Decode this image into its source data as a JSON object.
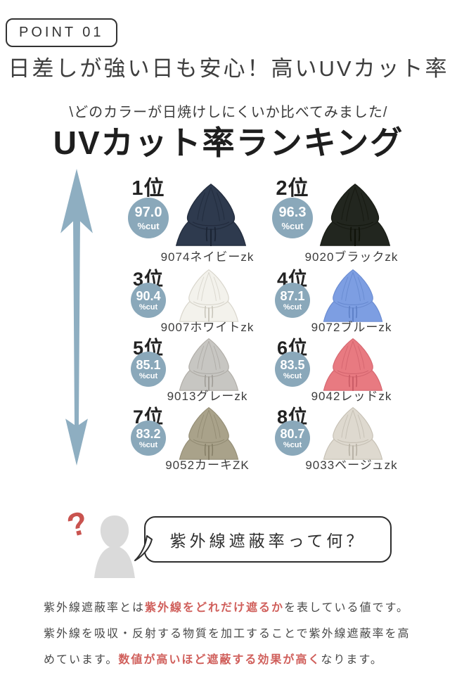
{
  "header": {
    "point_label": "POINT 01",
    "title": "日差しが強い日も安心！高いUVカット率",
    "callout": "\\どのカラーが日焼けしにくいか比べてみました/",
    "ranking_title": "UVカット率ランキング"
  },
  "ranking": {
    "badge_color": "#8aa8ba",
    "arrow_color": "#8eaec1",
    "items": [
      {
        "rank": "1位",
        "pct": "97.0",
        "cut_label": "%cut",
        "caption": "9074ネイビーzk",
        "color_name": "navy",
        "fill": "#2e3a4e",
        "detail": "#1b2434",
        "outline": "#232d3e",
        "large": true
      },
      {
        "rank": "2位",
        "pct": "96.3",
        "cut_label": "%cut",
        "caption": "9020ブラックzk",
        "color_name": "black",
        "fill": "#22261f",
        "detail": "#101309",
        "outline": "#1a1d16",
        "large": true
      },
      {
        "rank": "3位",
        "pct": "90.4",
        "cut_label": "%cut",
        "caption": "9007ホワイトzk",
        "color_name": "white",
        "fill": "#f3f2ec",
        "detail": "#c6c3b8",
        "outline": "#d8d5cb",
        "large": false
      },
      {
        "rank": "4位",
        "pct": "87.1",
        "cut_label": "%cut",
        "caption": "9072ブルーzk",
        "color_name": "blue",
        "fill": "#7d9ee2",
        "detail": "#5a7dc4",
        "outline": "#6b8cd1",
        "large": false
      },
      {
        "rank": "5位",
        "pct": "85.1",
        "cut_label": "%cut",
        "caption": "9013グレーzk",
        "color_name": "gray",
        "fill": "#c7c6c2",
        "detail": "#9c9993",
        "outline": "#b0ada7",
        "large": false
      },
      {
        "rank": "6位",
        "pct": "83.5",
        "cut_label": "%cut",
        "caption": "9042レッドzk",
        "color_name": "red",
        "fill": "#e87a81",
        "detail": "#c65862",
        "outline": "#d56770",
        "large": false
      },
      {
        "rank": "7位",
        "pct": "83.2",
        "cut_label": "%cut",
        "caption": "9052カーキZK",
        "color_name": "khaki",
        "fill": "#a9a28a",
        "detail": "#837c64",
        "outline": "#948d75",
        "large": false
      },
      {
        "rank": "8位",
        "pct": "80.7",
        "cut_label": "%cut",
        "caption": "9033ベージュzk",
        "color_name": "beige",
        "fill": "#ded9cf",
        "detail": "#b3ada0",
        "outline": "#c6c0b4",
        "large": false
      }
    ]
  },
  "question": {
    "mark": "?",
    "mark_color": "#c9534f",
    "silhouette_color": "#dadada",
    "bubble_text": "紫外線遮蔽率って何？"
  },
  "explanation": {
    "highlight_color": "#d05f5b",
    "segments": [
      {
        "text": "紫外線遮蔽率とは",
        "em": false
      },
      {
        "text": "紫外線をどれだけ遮るか",
        "em": true
      },
      {
        "text": "を表している値です。紫外線を吸収・反射する物質を加工することで紫外線遮蔽率を高めています。",
        "em": false
      },
      {
        "text": "数値が高いほど遮蔽する効果が高く",
        "em": true
      },
      {
        "text": "なります。",
        "em": false
      }
    ]
  }
}
